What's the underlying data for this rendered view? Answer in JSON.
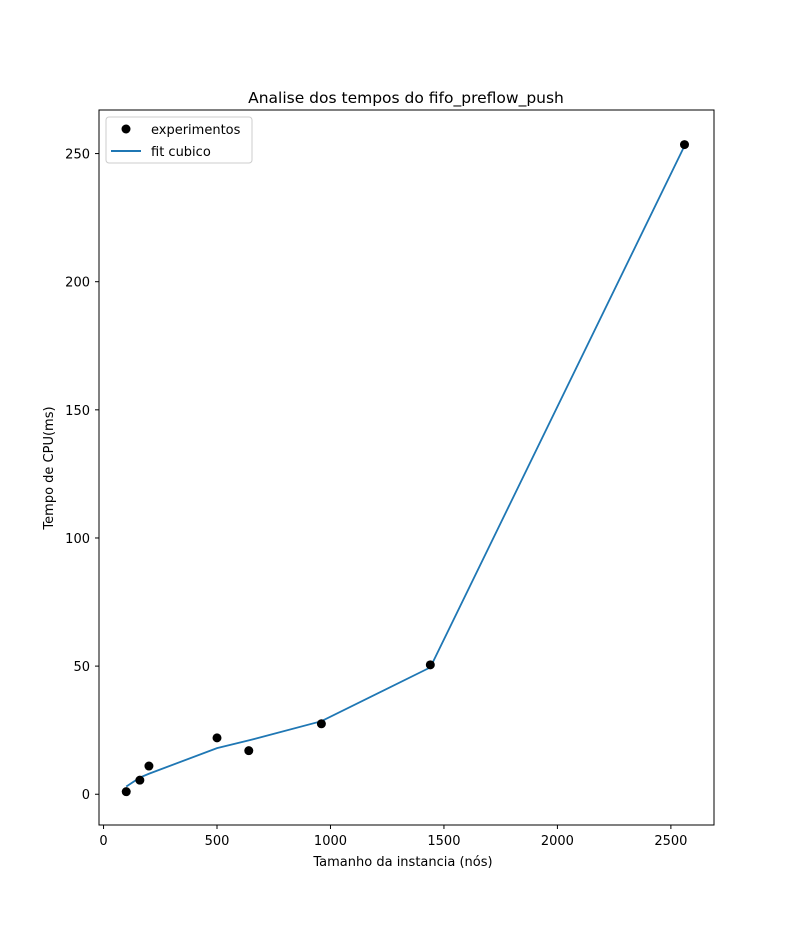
{
  "chart_data": {
    "type": "scatter",
    "title": "Analise dos tempos do fifo_preflow_push",
    "xlabel": "Tamanho da instancia (nós)",
    "ylabel": "Tempo de CPU(ms)",
    "xlim": [
      -20,
      2690
    ],
    "ylim": [
      -12,
      267
    ],
    "xticks": [
      0,
      500,
      1000,
      1500,
      2000,
      2500
    ],
    "yticks": [
      0,
      50,
      100,
      150,
      200,
      250
    ],
    "legend_position": "top-left",
    "colors": {
      "points": "#000000",
      "fit": "#1f77b4"
    },
    "series": [
      {
        "name": "experimentos",
        "kind": "points",
        "x": [
          100,
          160,
          200,
          500,
          640,
          960,
          1440,
          2560
        ],
        "y": [
          1,
          5.5,
          11,
          22,
          17,
          27.5,
          50.5,
          253.5
        ]
      },
      {
        "name": "fit cubico",
        "kind": "line",
        "x": [
          100,
          160,
          200,
          500,
          640,
          960,
          1440,
          2560
        ],
        "y": [
          3,
          6.5,
          8,
          18,
          21,
          28.5,
          49.5,
          253
        ]
      }
    ]
  }
}
